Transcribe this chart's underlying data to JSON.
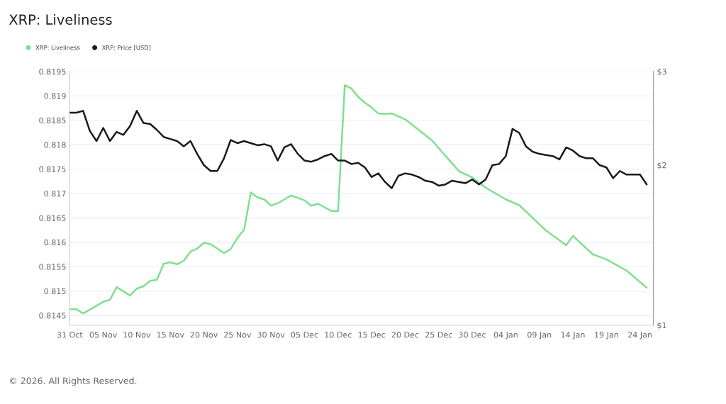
{
  "chart_data": {
    "type": "line",
    "title": "XRP: Liveliness",
    "xlim": [
      "2025-10-31",
      "2026-01-26"
    ],
    "xticks": [
      {
        "value": "2025-10-31",
        "label": "31 Oct"
      },
      {
        "value": "2025-11-05",
        "label": "05 Nov"
      },
      {
        "value": "2025-11-10",
        "label": "10 Nov"
      },
      {
        "value": "2025-11-15",
        "label": "15 Nov"
      },
      {
        "value": "2025-11-20",
        "label": "20 Nov"
      },
      {
        "value": "2025-11-25",
        "label": "25 Nov"
      },
      {
        "value": "2025-11-30",
        "label": "30 Nov"
      },
      {
        "value": "2025-12-05",
        "label": "05 Dec"
      },
      {
        "value": "2025-12-10",
        "label": "10 Dec"
      },
      {
        "value": "2025-12-15",
        "label": "15 Dec"
      },
      {
        "value": "2025-12-20",
        "label": "20 Dec"
      },
      {
        "value": "2025-12-25",
        "label": "25 Dec"
      },
      {
        "value": "2025-12-30",
        "label": "30 Dec"
      },
      {
        "value": "2026-01-04",
        "label": "04 Jan"
      },
      {
        "value": "2026-01-09",
        "label": "09 Jan"
      },
      {
        "value": "2026-01-14",
        "label": "14 Jan"
      },
      {
        "value": "2026-01-19",
        "label": "19 Jan"
      },
      {
        "value": "2026-01-24",
        "label": "24 Jan"
      }
    ],
    "ylim": [
      0.8143,
      0.8195
    ],
    "yticks": [
      0.8145,
      0.815,
      0.8155,
      0.816,
      0.8165,
      0.817,
      0.8175,
      0.818,
      0.8185,
      0.819,
      0.8195
    ],
    "y2lim": [
      1,
      3
    ],
    "y2ticks": [
      {
        "value": 1,
        "label": "$1"
      },
      {
        "value": 2,
        "label": "$2"
      },
      {
        "value": 3,
        "label": "$3"
      }
    ],
    "log": "y2",
    "grid": "y",
    "legend": "top left",
    "annotations": [
      "© 2026. All Rights Reserved."
    ],
    "series": [
      {
        "name": "XRP: Liveliness",
        "color": "#7ee08f",
        "x": [
          "2025-10-31",
          "2025-11-01",
          "2025-11-02",
          "2025-11-05",
          "2025-11-06",
          "2025-11-07",
          "2025-11-09",
          "2025-11-10",
          "2025-11-11",
          "2025-11-12",
          "2025-11-13",
          "2025-11-14",
          "2025-11-15",
          "2025-11-16",
          "2025-11-17",
          "2025-11-18",
          "2025-11-19",
          "2025-11-20",
          "2025-11-21",
          "2025-11-23",
          "2025-11-24",
          "2025-11-25",
          "2025-11-26",
          "2025-11-27",
          "2025-11-28",
          "2025-11-29",
          "2025-11-30",
          "2025-12-01",
          "2025-12-03",
          "2025-12-05",
          "2025-12-06",
          "2025-12-07",
          "2025-12-09",
          "2025-12-10",
          "2025-12-11",
          "2025-12-12",
          "2025-12-13",
          "2025-12-14",
          "2025-12-15",
          "2025-12-16",
          "2025-12-17",
          "2025-12-18",
          "2025-12-20",
          "2025-12-24",
          "2025-12-28",
          "2025-12-30",
          "2026-01-01",
          "2026-01-04",
          "2026-01-06",
          "2026-01-07",
          "2026-01-10",
          "2026-01-13",
          "2026-01-14",
          "2026-01-17",
          "2026-01-19",
          "2026-01-22",
          "2026-01-25"
        ],
        "values": [
          0.81463,
          0.81463,
          0.81454,
          0.81478,
          0.81482,
          0.81508,
          0.81491,
          0.81505,
          0.8151,
          0.81521,
          0.81523,
          0.81556,
          0.81559,
          0.81555,
          0.81562,
          0.81581,
          0.81587,
          0.81599,
          0.81596,
          0.81578,
          0.81586,
          0.81609,
          0.81626,
          0.81702,
          0.81692,
          0.81688,
          0.81675,
          0.8168,
          0.81696,
          0.81686,
          0.81675,
          0.81679,
          0.81664,
          0.81664,
          0.81922,
          0.81915,
          0.81898,
          0.81886,
          0.81876,
          0.81864,
          0.81863,
          0.81864,
          0.81852,
          0.81809,
          0.81746,
          0.81733,
          0.81712,
          0.81688,
          0.81676,
          0.81663,
          0.81624,
          0.81594,
          0.81613,
          0.81575,
          0.81565,
          0.81542,
          0.81507
        ]
      },
      {
        "name": "XRP: Price [USD]",
        "color": "#1a1a1a",
        "axis": "y2",
        "x": [
          "2025-10-31",
          "2025-11-01",
          "2025-11-02",
          "2025-11-03",
          "2025-11-04",
          "2025-11-05",
          "2025-11-06",
          "2025-11-07",
          "2025-11-08",
          "2025-11-09",
          "2025-11-10",
          "2025-11-11",
          "2025-11-12",
          "2025-11-13",
          "2025-11-14",
          "2025-11-15",
          "2025-11-16",
          "2025-11-17",
          "2025-11-18",
          "2025-11-19",
          "2025-11-20",
          "2025-11-21",
          "2025-11-22",
          "2025-11-23",
          "2025-11-24",
          "2025-11-25",
          "2025-11-26",
          "2025-11-27",
          "2025-11-28",
          "2025-11-29",
          "2025-11-30",
          "2025-12-01",
          "2025-12-02",
          "2025-12-03",
          "2025-12-04",
          "2025-12-05",
          "2025-12-06",
          "2025-12-07",
          "2025-12-08",
          "2025-12-09",
          "2025-12-10",
          "2025-12-11",
          "2025-12-12",
          "2025-12-13",
          "2025-12-14",
          "2025-12-15",
          "2025-12-16",
          "2025-12-17",
          "2025-12-18",
          "2025-12-19",
          "2025-12-20",
          "2025-12-21",
          "2025-12-22",
          "2025-12-23",
          "2025-12-24",
          "2025-12-25",
          "2025-12-26",
          "2025-12-27",
          "2025-12-28",
          "2025-12-29",
          "2025-12-30",
          "2025-12-31",
          "2026-01-01",
          "2026-01-02",
          "2026-01-03",
          "2026-01-04",
          "2026-01-05",
          "2026-01-06",
          "2026-01-07",
          "2026-01-08",
          "2026-01-09",
          "2026-01-10",
          "2026-01-11",
          "2026-01-12",
          "2026-01-13",
          "2026-01-14",
          "2026-01-15",
          "2026-01-16",
          "2026-01-17",
          "2026-01-18",
          "2026-01-19",
          "2026-01-20",
          "2026-01-21",
          "2026-01-22",
          "2026-01-23",
          "2026-01-24",
          "2026-01-25"
        ],
        "values": [
          2.51,
          2.51,
          2.53,
          2.32,
          2.22,
          2.35,
          2.22,
          2.31,
          2.28,
          2.37,
          2.53,
          2.4,
          2.39,
          2.33,
          2.26,
          2.24,
          2.22,
          2.17,
          2.22,
          2.1,
          2.0,
          1.95,
          1.95,
          2.06,
          2.23,
          2.2,
          2.22,
          2.2,
          2.18,
          2.19,
          2.17,
          2.04,
          2.16,
          2.19,
          2.1,
          2.04,
          2.03,
          2.05,
          2.08,
          2.1,
          2.04,
          2.04,
          2.01,
          2.02,
          1.98,
          1.9,
          1.93,
          1.86,
          1.81,
          1.91,
          1.93,
          1.92,
          1.9,
          1.87,
          1.86,
          1.83,
          1.84,
          1.87,
          1.86,
          1.85,
          1.88,
          1.84,
          1.88,
          2.0,
          2.01,
          2.08,
          2.34,
          2.3,
          2.17,
          2.12,
          2.1,
          2.09,
          2.08,
          2.05,
          2.16,
          2.13,
          2.08,
          2.06,
          2.06,
          2.0,
          1.98,
          1.89,
          1.95,
          1.92,
          1.92,
          1.92,
          1.84
        ]
      }
    ]
  }
}
